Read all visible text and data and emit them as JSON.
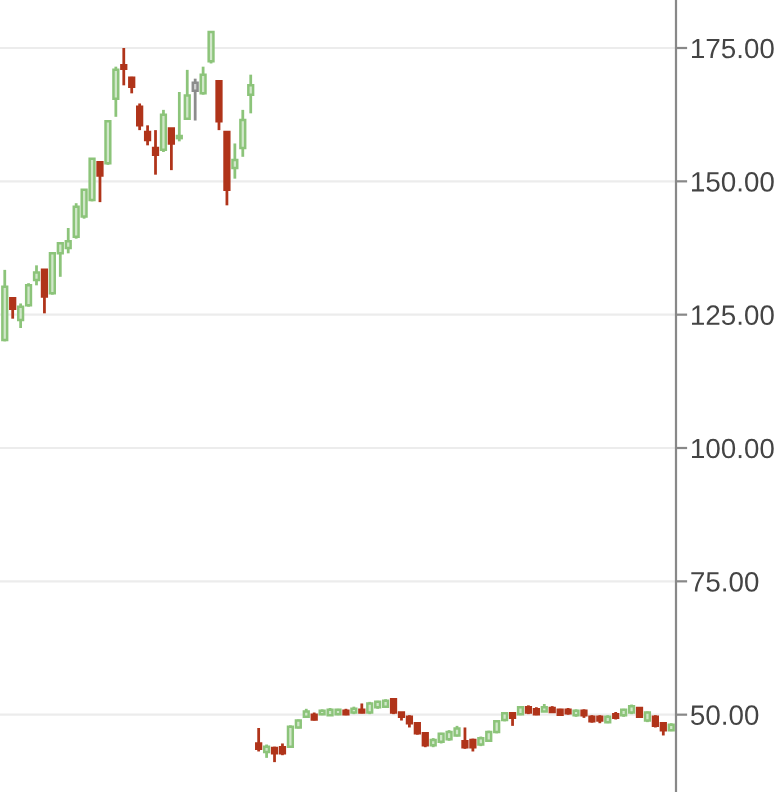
{
  "chart_data": {
    "type": "candlestick",
    "categories": [
      null,
      null,
      null,
      null,
      null,
      null,
      null,
      null,
      null,
      null,
      null,
      null,
      null,
      null,
      null,
      null,
      null,
      null,
      null,
      null,
      null,
      null,
      null,
      null,
      null,
      null,
      null,
      null,
      null,
      null,
      null,
      null,
      null,
      null,
      null,
      null,
      null,
      null,
      null,
      null,
      null,
      null,
      null,
      null,
      null,
      null,
      null,
      null,
      null,
      null,
      null,
      null,
      null,
      null,
      null,
      null,
      null,
      null,
      null,
      null,
      null,
      null,
      null,
      null,
      null,
      null,
      null,
      null,
      null,
      null,
      null,
      null,
      null,
      null,
      null,
      null,
      null,
      null,
      null,
      null,
      null,
      null,
      null,
      null,
      null
    ],
    "ohlc": [
      [
        120.25,
        133.4,
        120,
        130.25
      ],
      [
        128.1,
        128.1,
        124.25,
        126.1
      ],
      [
        124,
        127.1,
        122.5,
        126.5
      ],
      [
        126.75,
        130.9,
        126.5,
        130.5
      ],
      [
        131.5,
        134.25,
        130.5,
        132.9
      ],
      [
        133.4,
        133.4,
        125.25,
        128.4
      ],
      [
        129,
        136.75,
        128.75,
        136.5
      ],
      [
        136.5,
        138.4,
        132.1,
        138.4
      ],
      [
        137.5,
        141.25,
        136.5,
        138.75
      ],
      [
        139.6,
        145.9,
        139.25,
        145.25
      ],
      [
        143.4,
        148.4,
        143,
        148.4
      ],
      [
        146.5,
        154.25,
        146.25,
        154.25
      ],
      [
        153.6,
        153.6,
        146.1,
        151.1
      ],
      [
        153.4,
        161.5,
        153.1,
        161.25
      ],
      [
        165.5,
        171.5,
        162.1,
        170.9
      ],
      [
        171.75,
        175,
        168,
        171.1
      ],
      [
        169.4,
        169.6,
        166.5,
        167.75
      ],
      [
        164,
        164.6,
        159.6,
        160.5
      ],
      [
        159.25,
        160.5,
        156.75,
        157.75
      ],
      [
        156.25,
        159.6,
        151.25,
        155
      ],
      [
        155.9,
        163.4,
        155.5,
        162.5
      ],
      [
        159.9,
        159.9,
        152.1,
        157.1
      ],
      [
        158.1,
        166.75,
        157.5,
        158.5
      ],
      [
        161.75,
        170.9,
        161.5,
        166.1
      ],
      [
        167,
        169.25,
        161.4,
        168.5
      ],
      [
        166.5,
        171.5,
        166.25,
        170
      ],
      [
        172.5,
        178,
        172.1,
        178
      ],
      [
        168.75,
        168.75,
        159.6,
        161.25
      ],
      [
        159.25,
        159.25,
        145.5,
        148.4
      ],
      [
        152.5,
        157.1,
        150.5,
        154
      ],
      [
        156.25,
        163.4,
        154.6,
        161.5
      ],
      [
        166.25,
        170,
        162.75,
        168
      ],
      [
        44.6,
        47.5,
        43.1,
        43.6
      ],
      [
        43,
        44.4,
        41.9,
        44
      ],
      [
        43.75,
        44,
        41.1,
        42.75
      ],
      [
        43.9,
        44.6,
        42.4,
        42.75
      ],
      [
        44,
        48,
        43.75,
        47.75
      ],
      [
        47.6,
        49.1,
        47.4,
        48.9
      ],
      [
        49.6,
        51.1,
        49.4,
        50.6
      ],
      [
        50,
        50.4,
        48.9,
        49.1
      ],
      [
        50.1,
        51,
        49.9,
        50.75
      ],
      [
        49.9,
        51.25,
        49.75,
        50.9
      ],
      [
        50.1,
        51.1,
        49.9,
        50.9
      ],
      [
        50.75,
        51.1,
        49.9,
        50.1
      ],
      [
        50.4,
        51.5,
        50.1,
        51.1
      ],
      [
        50.9,
        52.1,
        50.25,
        50.4
      ],
      [
        50.4,
        52.4,
        50.1,
        52.1
      ],
      [
        51.4,
        52.6,
        51.1,
        52.4
      ],
      [
        51.5,
        52.9,
        51.4,
        52.6
      ],
      [
        52.9,
        52.9,
        50.1,
        50.4
      ],
      [
        50.4,
        50.4,
        48.9,
        49.6
      ],
      [
        49.6,
        49.9,
        47.6,
        48.4
      ],
      [
        48.4,
        48.6,
        46.25,
        46.5
      ],
      [
        46.5,
        46.75,
        43.9,
        44.25
      ],
      [
        44.25,
        45.6,
        43.9,
        45.25
      ],
      [
        44.9,
        46.6,
        44.6,
        46.4
      ],
      [
        45.4,
        47.1,
        45.1,
        46.75
      ],
      [
        46.1,
        47.9,
        45.9,
        47.4
      ],
      [
        45,
        47.6,
        43.6,
        43.9
      ],
      [
        45.25,
        45.5,
        43.1,
        43.9
      ],
      [
        44.4,
        45.9,
        44.1,
        45.6
      ],
      [
        45.1,
        47,
        44.9,
        46.75
      ],
      [
        46.75,
        49,
        46.5,
        48.75
      ],
      [
        49,
        50.5,
        48.75,
        50.25
      ],
      [
        50.25,
        50.25,
        47.9,
        49.4
      ],
      [
        50.1,
        51.6,
        49.9,
        51.4
      ],
      [
        51.4,
        51.75,
        50.1,
        50.4
      ],
      [
        51,
        51.4,
        49.9,
        50.1
      ],
      [
        50.6,
        52,
        50.5,
        51.4
      ],
      [
        51.25,
        51.6,
        50.4,
        50.5
      ],
      [
        50.9,
        51.1,
        49.9,
        50
      ],
      [
        50.9,
        51.25,
        50,
        50.25
      ],
      [
        49.9,
        51,
        49.6,
        50.75
      ],
      [
        50.75,
        51,
        49.4,
        49.9
      ],
      [
        49.6,
        49.9,
        48.5,
        48.75
      ],
      [
        49.6,
        49.9,
        48.4,
        48.9
      ],
      [
        48.6,
        49.9,
        48.4,
        49.6
      ],
      [
        50.1,
        50.5,
        49.1,
        49.4
      ],
      [
        49.9,
        51.1,
        49.6,
        50.9
      ],
      [
        50.4,
        51.9,
        50.1,
        51.6
      ],
      [
        51.25,
        51.4,
        49.4,
        49.6
      ],
      [
        48.9,
        50.6,
        48.6,
        50.4
      ],
      [
        49.6,
        49.9,
        47.6,
        47.9
      ],
      [
        48.4,
        48.6,
        46.1,
        47.1
      ],
      [
        47.1,
        48.4,
        46.9,
        48.1
      ]
    ],
    "colors": [
      "#8cc47a",
      "#b0341a",
      "#8cc47a",
      "#8cc47a",
      "#8cc47a",
      "#b0341a",
      "#8cc47a",
      "#8cc47a",
      "#8cc47a",
      "#8cc47a",
      "#8cc47a",
      "#8cc47a",
      "#b0341a",
      "#8cc47a",
      "#8cc47a",
      "#b0341a",
      "#b0341a",
      "#b0341a",
      "#b0341a",
      "#b0341a",
      "#8cc47a",
      "#b0341a",
      "#8cc47a",
      "#8cc47a",
      "#8c8c8c",
      "#8cc47a",
      "#8cc47a",
      "#b0341a",
      "#b0341a",
      "#8cc47a",
      "#8cc47a",
      "#8cc47a",
      "#b0341a",
      "#8cc47a",
      "#b0341a",
      "#b0341a",
      "#8cc47a",
      "#8cc47a",
      "#8cc47a",
      "#b0341a",
      "#8cc47a",
      "#8cc47a",
      "#8cc47a",
      "#b0341a",
      "#8cc47a",
      "#b0341a",
      "#8cc47a",
      "#8cc47a",
      "#8cc47a",
      "#b0341a",
      "#b0341a",
      "#b0341a",
      "#b0341a",
      "#b0341a",
      "#8cc47a",
      "#8cc47a",
      "#8cc47a",
      "#8cc47a",
      "#b0341a",
      "#b0341a",
      "#8cc47a",
      "#8cc47a",
      "#8cc47a",
      "#8cc47a",
      "#b0341a",
      "#8cc47a",
      "#b0341a",
      "#b0341a",
      "#8cc47a",
      "#b0341a",
      "#b0341a",
      "#b0341a",
      "#8cc47a",
      "#b0341a",
      "#b0341a",
      "#b0341a",
      "#8cc47a",
      "#b0341a",
      "#8cc47a",
      "#8cc47a",
      "#b0341a",
      "#8cc47a",
      "#b0341a",
      "#b0341a",
      "#8cc47a"
    ],
    "ylim": [
      35.5,
      184
    ],
    "yticks": [
      {
        "value": 50,
        "label": "50.00"
      },
      {
        "value": 75,
        "label": "75.00"
      },
      {
        "value": 100,
        "label": "100.00"
      },
      {
        "value": 125,
        "label": "125.00"
      },
      {
        "value": 150,
        "label": "150.00"
      },
      {
        "value": 175,
        "label": "175.00"
      }
    ],
    "grid": "y",
    "tick_labels": "y"
  }
}
